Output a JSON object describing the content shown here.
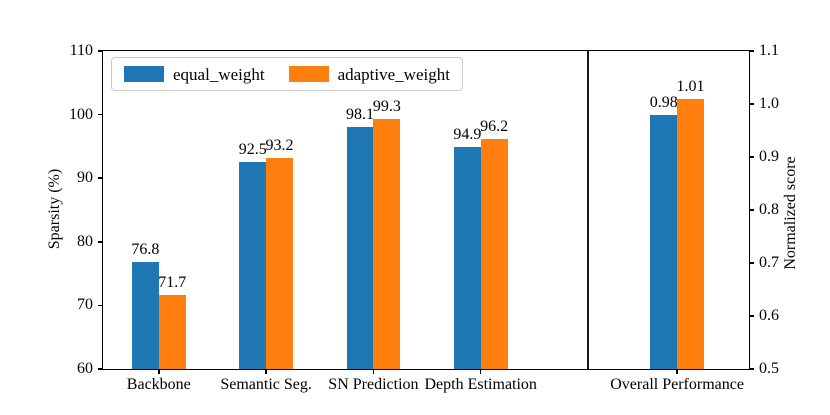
{
  "chart_data": {
    "type": "bar",
    "title": "",
    "categories": [
      "Backbone",
      "Semantic Seg.",
      "SN Prediction",
      "Depth Estimation",
      "Overall Performance"
    ],
    "x": [
      0,
      1,
      2,
      3,
      4.83
    ],
    "xlim": [
      -0.52,
      5.5
    ],
    "divider_x": 4.0,
    "bar_width": 0.25,
    "grid": false,
    "legend_position": "upper left",
    "left_axis": {
      "label": "Sparsity (%)",
      "min": 60,
      "max": 110,
      "ticks": [
        60,
        70,
        80,
        90,
        100,
        110
      ],
      "tick_labels": [
        "60",
        "70",
        "80",
        "90",
        "100",
        "110"
      ]
    },
    "right_axis": {
      "label": "Normalized score",
      "min": 0.5,
      "max": 1.1,
      "ticks": [
        0.5,
        0.6,
        0.7,
        0.8,
        0.9,
        1.0,
        1.1
      ],
      "tick_labels": [
        "0.5",
        "0.6",
        "0.7",
        "0.8",
        "0.9",
        "1.0",
        "1.1"
      ]
    },
    "axis_by_category": [
      "left",
      "left",
      "left",
      "left",
      "right"
    ],
    "series": [
      {
        "name": "equal_weight",
        "color": "#1f77b4",
        "values": [
          76.8,
          92.5,
          98.1,
          94.9,
          0.98
        ],
        "labels": [
          "76.8",
          "92.5",
          "98.1",
          "94.9",
          "0.98"
        ]
      },
      {
        "name": "adaptive_weight",
        "color": "#ff7f0e",
        "values": [
          71.7,
          93.2,
          99.3,
          96.2,
          1.01
        ],
        "labels": [
          "71.7",
          "93.2",
          "99.3",
          "96.2",
          "1.01"
        ]
      }
    ]
  }
}
